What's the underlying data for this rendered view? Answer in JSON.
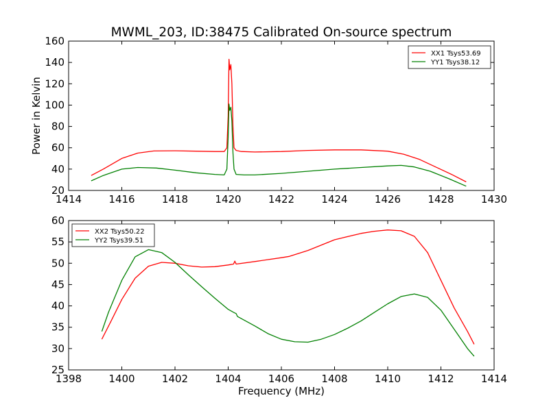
{
  "figure_title": "MWML_203, ID:38475 Calibrated On-source spectrum",
  "colors": {
    "xx": "#ff0000",
    "yy": "#008000",
    "axes": "#000000",
    "background": "#ffffff"
  },
  "chart_data": [
    {
      "type": "line",
      "title": "MWML_203, ID:38475 Calibrated On-source spectrum",
      "xlabel": "",
      "ylabel": "Power in Kelvin",
      "xlim": [
        1414,
        1430
      ],
      "ylim": [
        20,
        160
      ],
      "xticks": [
        1414,
        1416,
        1418,
        1420,
        1422,
        1424,
        1426,
        1428,
        1430
      ],
      "yticks": [
        20,
        40,
        60,
        80,
        100,
        120,
        140,
        160
      ],
      "grid": false,
      "legend_position": "top-right",
      "series": [
        {
          "name": "XX1 Tsys53.69",
          "color": "#ff0000",
          "x": [
            1414.85,
            1415.3,
            1416.0,
            1416.6,
            1417.2,
            1418.0,
            1418.8,
            1419.5,
            1419.85,
            1419.95,
            1420.0,
            1420.03,
            1420.06,
            1420.1,
            1420.14,
            1420.18,
            1420.22,
            1420.3,
            1420.5,
            1421.0,
            1422.0,
            1423.0,
            1424.0,
            1425.0,
            1426.0,
            1426.6,
            1427.2,
            1427.8,
            1428.4,
            1428.95
          ],
          "y": [
            34,
            40,
            50,
            55,
            57,
            57.2,
            56.8,
            56.5,
            56.5,
            60,
            90,
            143,
            133,
            138,
            120,
            80,
            60,
            57.5,
            56.5,
            56,
            56.5,
            57.5,
            58,
            58,
            56.8,
            54,
            49,
            42,
            35,
            28
          ]
        },
        {
          "name": "YY1 Tsys38.12",
          "color": "#008000",
          "x": [
            1414.85,
            1415.3,
            1416.0,
            1416.6,
            1417.3,
            1418.0,
            1418.8,
            1419.5,
            1419.85,
            1419.95,
            1420.0,
            1420.03,
            1420.06,
            1420.1,
            1420.14,
            1420.18,
            1420.22,
            1420.3,
            1420.6,
            1421.0,
            1422.0,
            1423.0,
            1424.0,
            1425.0,
            1426.0,
            1426.5,
            1427.0,
            1427.6,
            1428.3,
            1428.95
          ],
          "y": [
            29,
            34,
            40,
            41.5,
            41,
            39,
            36.5,
            35,
            34.5,
            40,
            70,
            101,
            95,
            98,
            85,
            55,
            40,
            35,
            34.5,
            34.5,
            36,
            38,
            40,
            41.5,
            43,
            43.5,
            42,
            38,
            31,
            24
          ]
        }
      ]
    },
    {
      "type": "line",
      "title": "",
      "xlabel": "Frequency (MHz)",
      "ylabel": "",
      "xlim": [
        1398,
        1414
      ],
      "ylim": [
        25,
        60
      ],
      "xticks": [
        1398,
        1400,
        1402,
        1404,
        1406,
        1408,
        1410,
        1412,
        1414
      ],
      "yticks": [
        25,
        30,
        35,
        40,
        45,
        50,
        55,
        60
      ],
      "grid": false,
      "legend_position": "top-left",
      "series": [
        {
          "name": "XX2 Tsys50.22",
          "color": "#ff0000",
          "x": [
            1399.25,
            1399.6,
            1400.0,
            1400.5,
            1401.0,
            1401.5,
            1402.0,
            1402.5,
            1403.0,
            1403.5,
            1404.0,
            1404.2,
            1404.25,
            1404.3,
            1405.0,
            1406.0,
            1406.3,
            1407.0,
            1408.0,
            1409.0,
            1409.5,
            1410.0,
            1410.5,
            1411.0,
            1411.5,
            1412.0,
            1412.5,
            1413.0,
            1413.25
          ],
          "y": [
            32.2,
            36.5,
            41.5,
            46.5,
            49.3,
            50.2,
            50,
            49.4,
            49.1,
            49.2,
            49.6,
            49.8,
            50.5,
            49.8,
            50.4,
            51.3,
            51.6,
            53,
            55.5,
            57,
            57.5,
            57.8,
            57.6,
            56.3,
            52.5,
            46,
            39.5,
            34,
            31
          ]
        },
        {
          "name": "YY2 Tsys39.51",
          "color": "#008000",
          "x": [
            1399.25,
            1399.5,
            1400.0,
            1400.5,
            1401.0,
            1401.5,
            1402.0,
            1402.5,
            1403.0,
            1403.5,
            1404.0,
            1404.2,
            1404.3,
            1404.35,
            1405.0,
            1405.5,
            1406.0,
            1406.5,
            1407.0,
            1407.5,
            1408.0,
            1408.5,
            1409.0,
            1409.5,
            1410.0,
            1410.5,
            1411.0,
            1411.5,
            1412.0,
            1412.5,
            1413.0,
            1413.25
          ],
          "y": [
            34,
            38.5,
            46,
            51.5,
            53.2,
            52.5,
            50.2,
            47.3,
            44.5,
            41.8,
            39.2,
            38.5,
            38.2,
            37.5,
            35.3,
            33.5,
            32.2,
            31.6,
            31.5,
            32.2,
            33.3,
            34.8,
            36.5,
            38.5,
            40.5,
            42.2,
            42.8,
            42,
            39,
            34.5,
            30,
            28.2
          ]
        }
      ]
    }
  ]
}
